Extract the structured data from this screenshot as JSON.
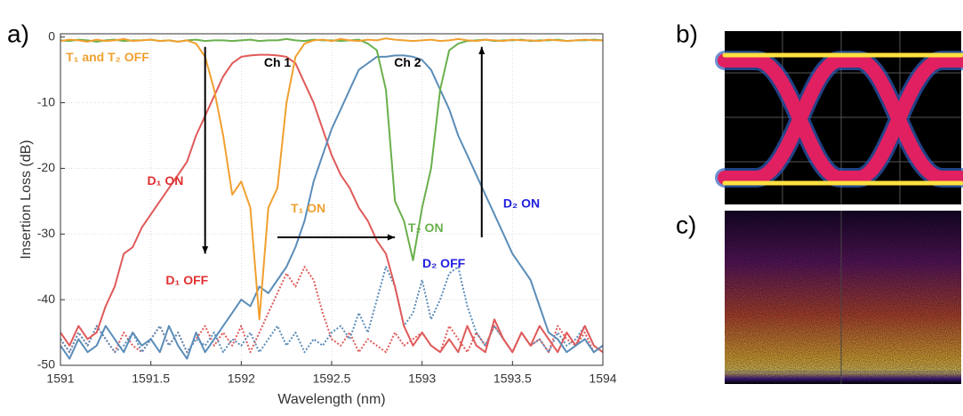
{
  "chart_data": {
    "type": "line",
    "xlabel": "Wavelength (nm)",
    "ylabel": "Insertion Loss (dB)",
    "xlim": [
      1591,
      1594
    ],
    "ylim": [
      -50,
      0.5
    ],
    "xticks": [
      1591,
      1591.5,
      1592,
      1592.5,
      1593,
      1593.5,
      1594
    ],
    "yticks": [
      0,
      -10,
      -20,
      -30,
      -40,
      -50
    ],
    "grid": true,
    "x": [
      1591,
      1591.05,
      1591.1,
      1591.15,
      1591.2,
      1591.25,
      1591.3,
      1591.35,
      1591.4,
      1591.45,
      1591.5,
      1591.55,
      1591.6,
      1591.65,
      1591.7,
      1591.75,
      1591.8,
      1591.85,
      1591.9,
      1591.95,
      1592,
      1592.05,
      1592.1,
      1592.15,
      1592.2,
      1592.25,
      1592.3,
      1592.35,
      1592.4,
      1592.45,
      1592.5,
      1592.55,
      1592.6,
      1592.65,
      1592.7,
      1592.75,
      1592.8,
      1592.85,
      1592.9,
      1592.95,
      1593,
      1593.05,
      1593.1,
      1593.15,
      1593.2,
      1593.25,
      1593.3,
      1593.35,
      1593.4,
      1593.45,
      1593.5,
      1593.55,
      1593.6,
      1593.65,
      1593.7,
      1593.75,
      1593.8,
      1593.85,
      1593.9,
      1593.95,
      1594
    ],
    "series": [
      {
        "color": "#e05a5a",
        "linestyle": "dotted",
        "values": [
          -46,
          -48,
          -45,
          -47,
          -44,
          -46,
          -48,
          -45,
          -47,
          -48,
          -46,
          -44,
          -47,
          -45,
          -48,
          -46,
          -44,
          -47,
          -45,
          -47,
          -44,
          -48,
          -45,
          -42,
          -39,
          -36,
          -38,
          -35,
          -37,
          -42,
          -46,
          -47,
          -45,
          -48,
          -46,
          -47,
          -48,
          -45,
          -47,
          -46,
          -45,
          -47,
          -48,
          -44,
          -46,
          -48,
          -45,
          -47,
          -44,
          -46,
          -48,
          -45,
          -47,
          -46,
          -48,
          -44,
          -46,
          -47,
          -45,
          -48,
          -47
        ]
      },
      {
        "color": "#5b8db8",
        "linestyle": "dotted",
        "values": [
          -46,
          -48,
          -45,
          -47,
          -44,
          -46,
          -48,
          -47,
          -45,
          -48,
          -46,
          -44,
          -47,
          -45,
          -48,
          -46,
          -47,
          -45,
          -48,
          -46,
          -47,
          -45,
          -48,
          -46,
          -44,
          -47,
          -45,
          -48,
          -46,
          -47,
          -45,
          -44,
          -46,
          -42,
          -45,
          -40,
          -35,
          -38,
          -44,
          -42,
          -37,
          -43,
          -40,
          -36,
          -35,
          -41,
          -45,
          -47,
          -44,
          -46,
          -48,
          -45,
          -47,
          -46,
          -48,
          -45,
          -47,
          -46,
          -44,
          -47,
          -48
        ]
      },
      {
        "color": "#e05a5a",
        "linestyle": "solid",
        "values": [
          -45,
          -47,
          -44,
          -46,
          -45,
          -41,
          -38,
          -33,
          -32,
          -29,
          -27,
          -25,
          -23,
          -21,
          -19,
          -15,
          -12,
          -9,
          -6,
          -4,
          -3,
          -2.8,
          -2.7,
          -2.7,
          -2.8,
          -3,
          -4,
          -7,
          -10,
          -14,
          -18,
          -21,
          -23,
          -26,
          -28,
          -31,
          -33,
          -38,
          -44,
          -47,
          -45,
          -47,
          -48,
          -46,
          -48,
          -44,
          -47,
          -48,
          -43,
          -46,
          -48,
          -45,
          -47,
          -44,
          -46,
          -48,
          -45,
          -47,
          -44,
          -47,
          -48
        ]
      },
      {
        "color": "#5b8db8",
        "linestyle": "solid",
        "values": [
          -47,
          -49,
          -46,
          -48,
          -47,
          -44,
          -46,
          -48,
          -45,
          -47,
          -46,
          -48,
          -44,
          -47,
          -49,
          -45,
          -48,
          -46,
          -44,
          -42,
          -40,
          -41,
          -38,
          -39,
          -37,
          -35,
          -32,
          -28,
          -22,
          -18,
          -14,
          -11,
          -8,
          -5,
          -4,
          -3,
          -3,
          -2.8,
          -2.8,
          -3,
          -3.5,
          -5,
          -8,
          -11,
          -15,
          -18,
          -21,
          -24,
          -27,
          -30,
          -33,
          -35,
          -37,
          -41,
          -45,
          -46,
          -48,
          -47,
          -46,
          -48,
          -47
        ]
      },
      {
        "color": "#6ab04c",
        "linestyle": "solid",
        "values": [
          -0.5,
          -0.6,
          -0.4,
          -0.5,
          -0.7,
          -0.5,
          -0.4,
          -0.6,
          -0.5,
          -0.5,
          -0.4,
          -0.6,
          -0.5,
          -0.7,
          -0.5,
          -0.4,
          -0.6,
          -0.5,
          -0.5,
          -0.6,
          -0.5,
          -0.4,
          -0.6,
          -0.5,
          -0.5,
          -0.3,
          -0.5,
          -0.6,
          -0.4,
          -0.5,
          -0.5,
          -0.6,
          -0.5,
          -0.4,
          -1,
          -2,
          -8,
          -25,
          -28,
          -34,
          -26,
          -20,
          -8,
          -2,
          -1,
          -0.6,
          -0.5,
          -0.4,
          -0.6,
          -0.5,
          -0.5,
          -0.4,
          -0.6,
          -0.5,
          -0.5,
          -0.4,
          -0.6,
          -0.5,
          -0.5,
          -0.4,
          -0.5
        ]
      },
      {
        "color": "#f0a030",
        "linestyle": "solid",
        "values": [
          -0.6,
          -0.4,
          -0.5,
          -0.7,
          -0.4,
          -0.6,
          -0.5,
          -0.3,
          -0.6,
          -0.5,
          -0.4,
          -0.6,
          -0.5,
          -0.7,
          -0.5,
          -1,
          -3,
          -8,
          -15,
          -24,
          -22,
          -26,
          -43,
          -26,
          -23,
          -10,
          -3,
          -1,
          -0.5,
          -0.4,
          -0.6,
          -0.3,
          -0.5,
          -0.6,
          -0.4,
          -0.5,
          -0.2,
          -0.4,
          -0.5,
          -0.6,
          -0.5,
          -0.4,
          -0.6,
          -0.5,
          -0.3,
          -0.5,
          -0.6,
          -0.4,
          -0.5,
          -0.6,
          -0.4,
          -0.5,
          -0.5,
          -0.6,
          -0.4,
          -0.5,
          -0.6,
          -0.5,
          -0.4,
          -0.5,
          -0.5
        ]
      }
    ],
    "annotations": [
      {
        "text": "Ch 1",
        "color": "#000000"
      },
      {
        "text": "Ch 2",
        "color": "#000000"
      },
      {
        "text": "T₁ and T₂ OFF",
        "color": "#f0a030"
      },
      {
        "text": "D₁ ON",
        "color": "#e03030"
      },
      {
        "text": "T₁ ON",
        "color": "#f0a030"
      },
      {
        "text": "T₂ ON",
        "color": "#6ab04c"
      },
      {
        "text": "D₂ ON",
        "color": "#2020e0"
      },
      {
        "text": "D₁ OFF",
        "color": "#e03030"
      },
      {
        "text": "D₂ OFF",
        "color": "#2020e0"
      }
    ]
  },
  "panels": [
    "a)",
    "b)",
    "c)"
  ]
}
